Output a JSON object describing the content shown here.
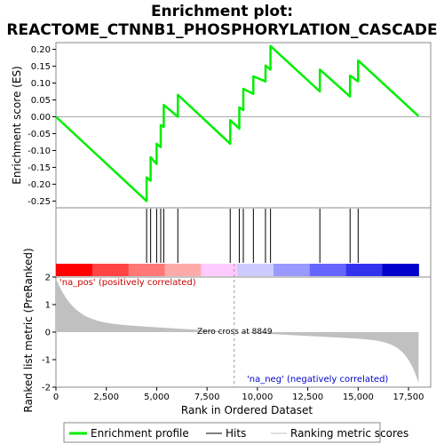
{
  "title_line1": "Enrichment plot:",
  "title_line2": "REACTOME_CTNNB1_PHOSPHORYLATION_CASCADE",
  "chart_data": {
    "type": "line",
    "es_panel": {
      "ylabel": "Enrichment score (ES)",
      "ylim": [
        -0.27,
        0.22
      ],
      "yticks": [
        "0.20",
        "0.15",
        "0.10",
        "0.05",
        "0.00",
        "-0.05",
        "-0.10",
        "-0.15",
        "-0.20",
        "-0.25"
      ],
      "ytick_values": [
        0.2,
        0.15,
        0.1,
        0.05,
        0.0,
        -0.05,
        -0.1,
        -0.15,
        -0.2,
        -0.25
      ],
      "series": [
        {
          "name": "Enrichment profile",
          "color": "#00ee00",
          "x": [
            0,
            4500,
            4500,
            4700,
            4700,
            5000,
            5000,
            5200,
            5200,
            5350,
            5350,
            6050,
            6050,
            8650,
            8650,
            9100,
            9100,
            9300,
            9300,
            9800,
            9800,
            10400,
            10400,
            10650,
            10650,
            13100,
            13100,
            14600,
            14600,
            15000,
            15000,
            18000
          ],
          "y": [
            0.0,
            -0.25,
            -0.18,
            -0.19,
            -0.12,
            -0.14,
            -0.08,
            -0.09,
            -0.025,
            -0.03,
            0.035,
            0.0,
            0.065,
            -0.08,
            -0.01,
            -0.035,
            0.028,
            0.02,
            0.083,
            0.068,
            0.12,
            0.105,
            0.152,
            0.14,
            0.21,
            0.075,
            0.14,
            0.06,
            0.122,
            0.105,
            0.167,
            0.002
          ]
        }
      ]
    },
    "hits": [
      4500,
      4700,
      5000,
      5200,
      5350,
      6050,
      8650,
      9100,
      9300,
      9800,
      10400,
      10650,
      13100,
      14600,
      15000
    ],
    "rank_bar_colors": [
      "#ff0000",
      "#ff4444",
      "#ff7777",
      "#ffaaaa",
      "#ffccff",
      "#ccccff",
      "#9999ff",
      "#6666ff",
      "#3333ee",
      "#0000cc"
    ],
    "metric_panel": {
      "ylabel": "Ranked list metric (PreRanked)",
      "ylim": [
        -2.0,
        2.0
      ],
      "yticks": [
        "2",
        "1",
        "0",
        "-1",
        "-2"
      ],
      "ytick_values": [
        2,
        1,
        0,
        -1,
        -2
      ],
      "xlabel": "Rank in Ordered Dataset",
      "xticks": [
        "0",
        "2,500",
        "5,000",
        "7,500",
        "10,000",
        "12,500",
        "15,000",
        "17,500"
      ],
      "xtick_values": [
        0,
        2500,
        5000,
        7500,
        10000,
        12500,
        15000,
        17500
      ],
      "xlim": [
        0,
        18600
      ],
      "zero_cross": 8849,
      "zero_cross_label": "Zero cross at 8849",
      "pos_label": "'na_pos' (positively correlated)",
      "neg_label": "'na_neg' (negatively correlated)"
    },
    "legend": [
      {
        "label": "Enrichment profile",
        "color": "#00ee00"
      },
      {
        "label": "Hits",
        "color": "#000000"
      },
      {
        "label": "Ranking metric scores",
        "color": "#c0c0c0"
      }
    ]
  }
}
